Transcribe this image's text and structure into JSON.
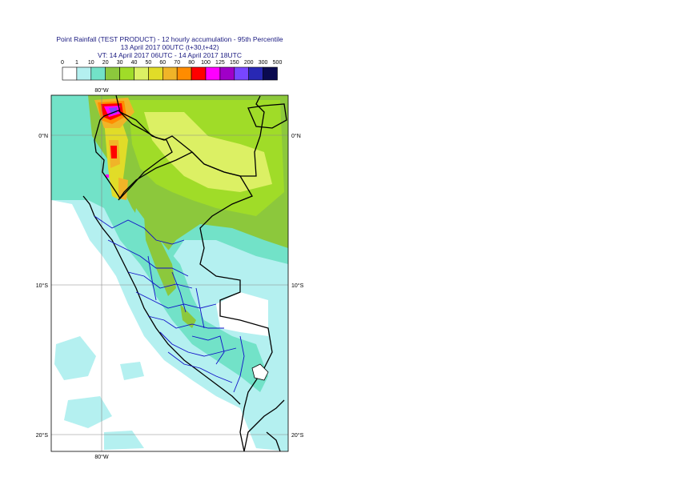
{
  "title": {
    "line1": "Point Rainfall (TEST PRODUCT) - 12 hourly accumulation - 95th Percentile",
    "line2": "13 April 2017 00UTC (t+30,t+42)",
    "line3": "VT: 14 April 2017 06UTC - 14 April 2017 18UTC"
  },
  "legend": {
    "thresholds": [
      "0",
      "1",
      "10",
      "20",
      "30",
      "40",
      "50",
      "60",
      "70",
      "80",
      "100",
      "125",
      "150",
      "200",
      "300",
      "500"
    ],
    "colors": [
      "#ffffff",
      "#b4f0f0",
      "#72e2c8",
      "#8cc83c",
      "#a0dc28",
      "#dcf064",
      "#e1dc28",
      "#f0b428",
      "#ff8c00",
      "#ff0000",
      "#ff00ff",
      "#a000c8",
      "#7846ff",
      "#2828b4",
      "#0a0a50"
    ]
  },
  "axes": {
    "lon_label_top": "80°W",
    "lon_label_bottom": "80°W",
    "lat_labels_left": [
      "0°N",
      "10°S",
      "20°S"
    ],
    "lat_labels_right": [
      "0°N",
      "10°S",
      "20°S"
    ]
  }
}
